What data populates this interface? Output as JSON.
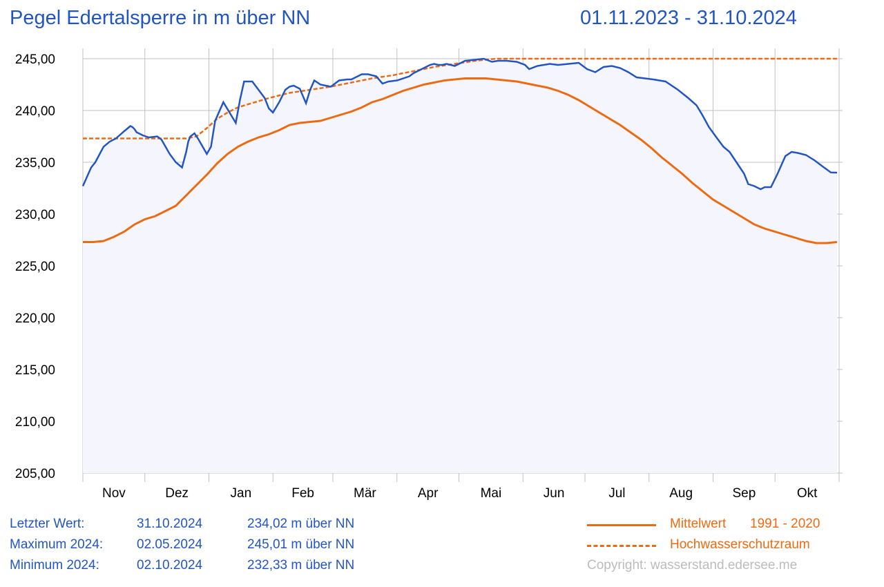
{
  "header": {
    "title": "Pegel Edertalsperre in m über NN",
    "period": "01.11.2023 - 31.10.2024"
  },
  "stats": [
    {
      "label": "Letzter Wert:",
      "date": "31.10.2024",
      "value": "234,02 m über NN"
    },
    {
      "label": "Maximum 2024:",
      "date": "02.05.2024",
      "value": "245,01 m über NN"
    },
    {
      "label": "Minimum 2024:",
      "date": "02.10.2024",
      "value": "232,33 m über NN"
    }
  ],
  "legend": {
    "mittelwert_label": "Mittelwert",
    "mittelwert_years": "1991 - 2020",
    "hws_label": "Hochwasserschutzraum"
  },
  "copyright": "Copyright: wasserstand.edersee.me",
  "colors": {
    "pegel": "#2255c4",
    "mittelwert": "#ee6a10",
    "hochwasserschutzraum": "#ee6a10",
    "fill": "#f5f6fd",
    "grid": "#c0c0c8"
  },
  "chart_data": {
    "type": "line",
    "ylim": [
      205,
      245
    ],
    "y_ticks": [
      "245,00",
      "240,00",
      "235,00",
      "230,00",
      "225,00",
      "220,00",
      "215,00",
      "210,00",
      "205,00"
    ],
    "y_tick_values": [
      245,
      240,
      235,
      230,
      225,
      220,
      215,
      210,
      205
    ],
    "x_domain_days": [
      0,
      365
    ],
    "month_ticks": [
      "Nov",
      "Dez",
      "Jan",
      "Feb",
      "Mär",
      "Apr",
      "Mai",
      "Jun",
      "Jul",
      "Aug",
      "Sep",
      "Okt"
    ],
    "series": [
      {
        "key": "pegel",
        "x": [
          0,
          4,
          6,
          10,
          13,
          16,
          20,
          23,
          24,
          25,
          26,
          27,
          29,
          32,
          36,
          38,
          42,
          45,
          48,
          50,
          51,
          52,
          54,
          56,
          58,
          60,
          62,
          64,
          68,
          71,
          74,
          76,
          78,
          82,
          85,
          88,
          90,
          92,
          95,
          98,
          100,
          102,
          105,
          108,
          110,
          112,
          115,
          120,
          124,
          128,
          130,
          135,
          138,
          142,
          145,
          148,
          152,
          158,
          160,
          163,
          168,
          170,
          172,
          174,
          176,
          178,
          180,
          185,
          190,
          194,
          198,
          201,
          205,
          210,
          214,
          216,
          220,
          226,
          230,
          235,
          240,
          244,
          248,
          252,
          256,
          260,
          264,
          268,
          272,
          276,
          282,
          288,
          293,
          297,
          300,
          303,
          307,
          310,
          313,
          316,
          320,
          322,
          325,
          328,
          330,
          333,
          336,
          340,
          343,
          346,
          350,
          354,
          358,
          362,
          365
        ],
        "y": [
          232.7,
          234.5,
          235.0,
          236.5,
          237.0,
          237.3,
          238.0,
          238.5,
          238.4,
          238.2,
          237.9,
          237.8,
          237.6,
          237.4,
          237.5,
          237.2,
          235.8,
          235.0,
          234.5,
          236.0,
          237.0,
          237.5,
          237.8,
          237.2,
          236.5,
          235.8,
          236.5,
          239.0,
          240.8,
          239.8,
          238.8,
          241.0,
          242.8,
          242.8,
          242.0,
          241.2,
          240.2,
          239.8,
          240.8,
          242.0,
          242.3,
          242.4,
          242.1,
          240.7,
          242.0,
          242.9,
          242.5,
          242.3,
          242.9,
          243.0,
          243.0,
          243.5,
          243.5,
          243.3,
          242.6,
          242.8,
          242.9,
          243.3,
          243.6,
          243.9,
          244.4,
          244.5,
          244.4,
          244.4,
          244.5,
          244.4,
          244.3,
          244.8,
          244.9,
          245.0,
          244.7,
          244.8,
          244.8,
          244.7,
          244.4,
          244.0,
          244.3,
          244.5,
          244.4,
          244.5,
          244.6,
          244.0,
          243.7,
          244.2,
          244.3,
          244.1,
          243.7,
          243.2,
          243.1,
          243.0,
          242.8,
          242.0,
          241.2,
          240.5,
          239.5,
          238.4,
          237.3,
          236.5,
          236.0,
          235.1,
          233.9,
          232.9,
          232.7,
          232.4,
          232.6,
          232.6,
          233.8,
          235.6,
          236.0,
          235.9,
          235.7,
          235.2,
          234.6,
          234.02,
          234.0
        ]
      },
      {
        "key": "mittelwert",
        "x": [
          0,
          5,
          10,
          15,
          20,
          25,
          30,
          35,
          40,
          45,
          50,
          55,
          60,
          65,
          70,
          75,
          80,
          85,
          90,
          95,
          100,
          105,
          110,
          115,
          120,
          125,
          130,
          135,
          140,
          145,
          150,
          155,
          160,
          165,
          170,
          175,
          180,
          185,
          190,
          195,
          200,
          205,
          210,
          215,
          220,
          225,
          230,
          235,
          240,
          245,
          250,
          255,
          260,
          265,
          270,
          275,
          280,
          285,
          290,
          295,
          300,
          305,
          310,
          315,
          320,
          325,
          330,
          335,
          340,
          345,
          350,
          355,
          360,
          365
        ],
        "y": [
          227.3,
          227.3,
          227.4,
          227.8,
          228.3,
          229.0,
          229.5,
          229.8,
          230.3,
          230.8,
          231.8,
          232.8,
          233.8,
          234.9,
          235.8,
          236.5,
          237.0,
          237.4,
          237.7,
          238.1,
          238.6,
          238.8,
          238.9,
          239.0,
          239.3,
          239.6,
          239.9,
          240.3,
          240.8,
          241.1,
          241.5,
          241.9,
          242.2,
          242.5,
          242.7,
          242.9,
          243.0,
          243.1,
          243.1,
          243.1,
          243.0,
          242.9,
          242.8,
          242.6,
          242.4,
          242.2,
          241.9,
          241.5,
          241.0,
          240.4,
          239.8,
          239.2,
          238.6,
          237.9,
          237.2,
          236.4,
          235.5,
          234.7,
          233.9,
          233.0,
          232.2,
          231.4,
          230.8,
          230.2,
          229.6,
          229.0,
          228.6,
          228.3,
          228.0,
          227.7,
          227.4,
          227.2,
          227.2,
          227.3
        ]
      },
      {
        "key": "hochwasserschutzraum",
        "x": [
          0,
          10,
          20,
          30,
          40,
          45,
          50,
          55,
          60,
          65,
          70,
          75,
          80,
          90,
          100,
          110,
          120,
          130,
          140,
          150,
          160,
          170,
          180,
          190,
          200,
          210,
          220,
          240,
          260,
          280,
          300,
          320,
          340,
          365
        ],
        "y": [
          237.3,
          237.3,
          237.3,
          237.3,
          237.3,
          237.3,
          237.3,
          237.5,
          238.3,
          239.2,
          239.8,
          240.3,
          240.6,
          241.2,
          241.7,
          242.0,
          242.3,
          242.7,
          243.1,
          243.4,
          243.8,
          244.2,
          244.5,
          244.8,
          245.0,
          245.0,
          245.0,
          245.0,
          245.0,
          245.0,
          245.0,
          245.0,
          245.0,
          245.0
        ]
      }
    ]
  }
}
